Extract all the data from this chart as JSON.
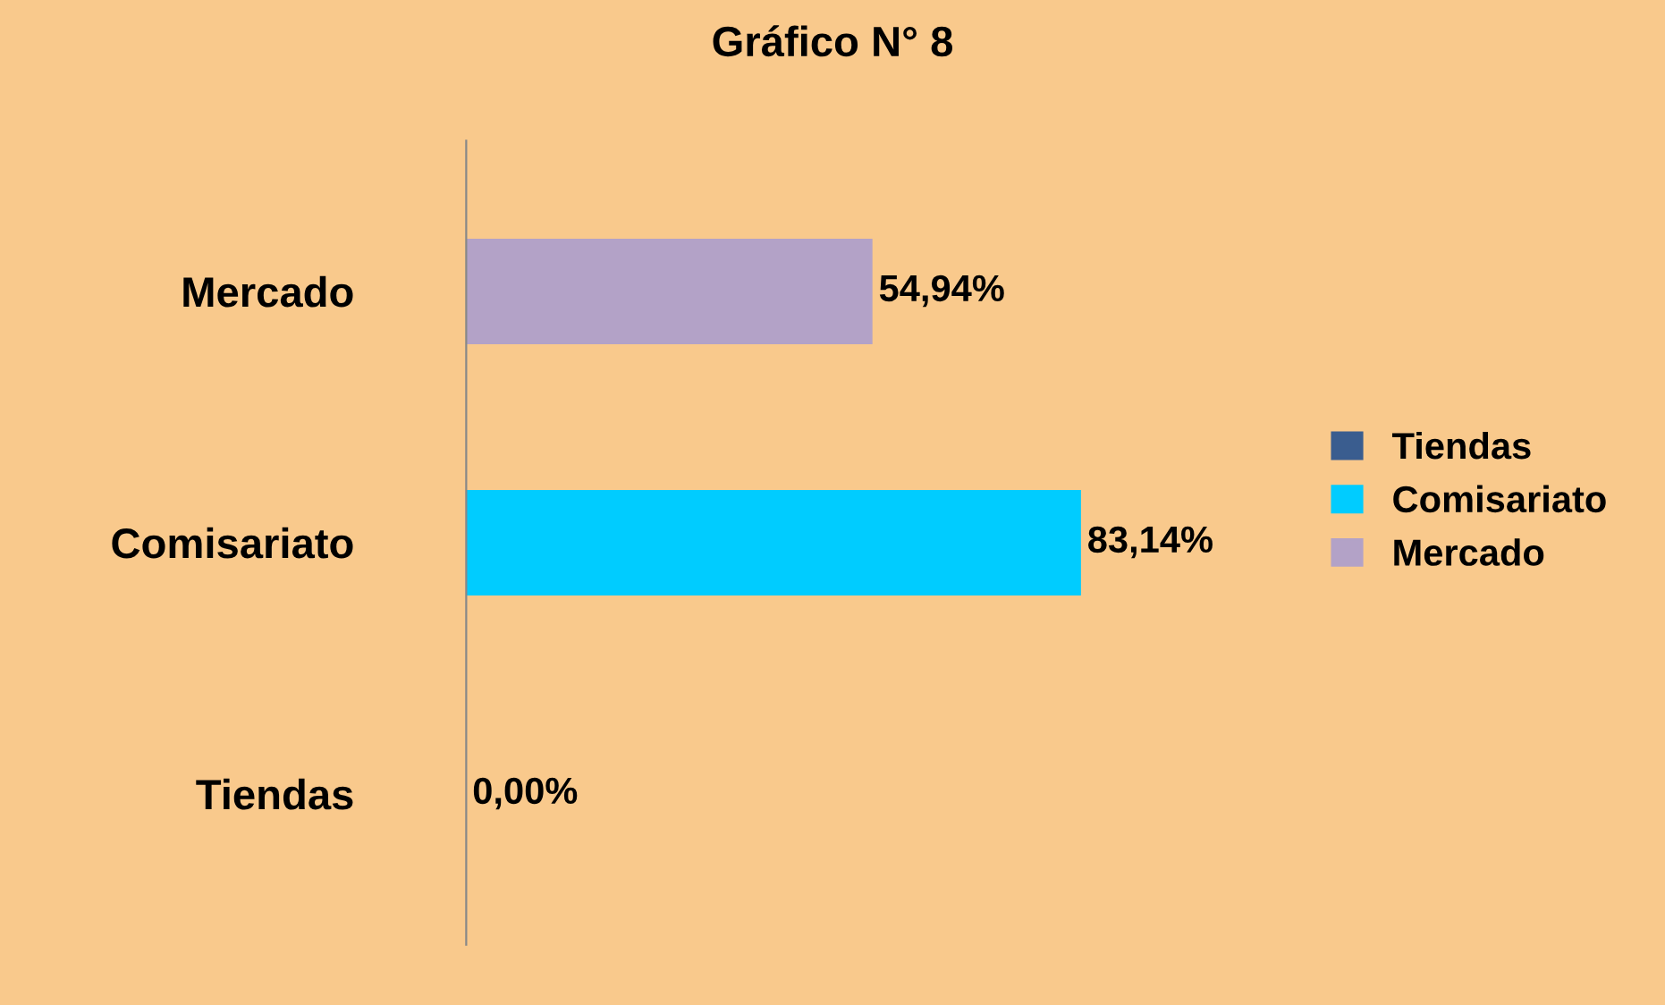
{
  "chart_data": {
    "type": "bar",
    "orientation": "horizontal",
    "title": "Gráfico N° 8",
    "categories": [
      "Mercado",
      "Comisariato",
      "Tiendas"
    ],
    "series": [
      {
        "name": "Tiendas",
        "color": "#3a5d8f",
        "values": [
          null,
          null,
          0.0
        ],
        "value_labels": [
          null,
          null,
          "0,00%"
        ]
      },
      {
        "name": "Comisariato",
        "color": "#00ccff",
        "values": [
          null,
          83.14,
          null
        ],
        "value_labels": [
          null,
          "83,14%",
          null
        ]
      },
      {
        "name": "Mercado",
        "color": "#b3a2c7",
        "values": [
          54.94,
          null,
          null
        ],
        "value_labels": [
          "54,94%",
          null,
          null
        ]
      }
    ],
    "legend": "right",
    "grid": false
  }
}
